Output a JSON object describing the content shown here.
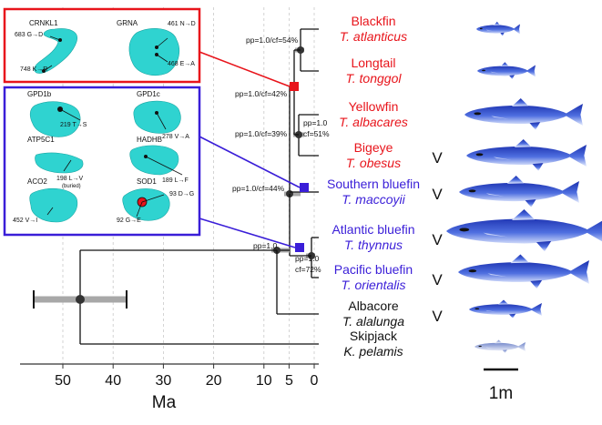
{
  "species": [
    {
      "common": "Blackfin",
      "latin": "T. atlanticus",
      "group": "red",
      "mark": ""
    },
    {
      "common": "Longtail",
      "latin": "T. tonggol",
      "group": "red",
      "mark": ""
    },
    {
      "common": "Yellowfin",
      "latin": "T. albacares",
      "group": "red",
      "mark": ""
    },
    {
      "common": "Bigeye",
      "latin": "T. obesus",
      "group": "red",
      "mark": "V"
    },
    {
      "common": "Southern bluefin",
      "latin": "T. maccoyii",
      "group": "blue",
      "mark": "V"
    },
    {
      "common": "Atlantic bluefin",
      "latin": "T. thynnus",
      "group": "blue",
      "mark": "V"
    },
    {
      "common": "Pacific bluefin",
      "latin": "T. orientalis",
      "group": "blue",
      "mark": "V"
    },
    {
      "common": "Albacore",
      "latin": "T. alalunga",
      "group": "black",
      "mark": "V"
    },
    {
      "common": "Skipjack",
      "latin": "K. pelamis",
      "group": "black",
      "mark": ""
    }
  ],
  "support": {
    "blackfin_longtail": "pp=1.0/cf=54%",
    "red_clade": "pp=1.0/cf=42%",
    "yellowfin_bigeye_a": "pp=1.0/cf=39%",
    "yellowfin_bigeye_b1": "pp=1.0",
    "yellowfin_bigeye_b2": "cf=51%",
    "southern": "pp=1.0/cf=44%",
    "bluefin_a": "pp=1.0",
    "bluefin_b1": "pp=1.0",
    "bluefin_b2": "cf=72%"
  },
  "axis": {
    "label": "Ma",
    "ticks": [
      {
        "label": "50",
        "value": 50
      },
      {
        "label": "40",
        "value": 40
      },
      {
        "label": "30",
        "value": 30
      },
      {
        "label": "20",
        "value": 20
      },
      {
        "label": "10",
        "value": 10
      },
      {
        "label": "5",
        "value": 5
      },
      {
        "label": "0",
        "value": 0
      }
    ]
  },
  "scale_bar": {
    "label": "1m"
  },
  "red_box": {
    "proteins": [
      {
        "name": "CRNKL1",
        "sites": [
          "683 G→D",
          "748 K→R"
        ]
      },
      {
        "name": "GRNA",
        "sites": [
          "461 N→D",
          "468 E→A"
        ]
      }
    ]
  },
  "blue_box": {
    "proteins": [
      {
        "name": "GPD1b",
        "sites": [
          "219 T→S"
        ]
      },
      {
        "name": "GPD1c",
        "sites": [
          "278 V→A"
        ]
      },
      {
        "name": "ATP5C1",
        "sites": [
          "198 L→V",
          "(buried)"
        ]
      },
      {
        "name": "HADHB",
        "sites": [
          "189 L→F"
        ]
      },
      {
        "name": "ACO2",
        "sites": [
          "452 V→I"
        ]
      },
      {
        "name": "SOD1",
        "sites": [
          "93 D→G",
          "92 G→E"
        ]
      }
    ]
  },
  "colors": {
    "red": "#e8141b",
    "blue": "#3a1ed8",
    "cyan": "#2fd3d0",
    "fish_blue": "#2a46c8",
    "node": "#333333"
  }
}
